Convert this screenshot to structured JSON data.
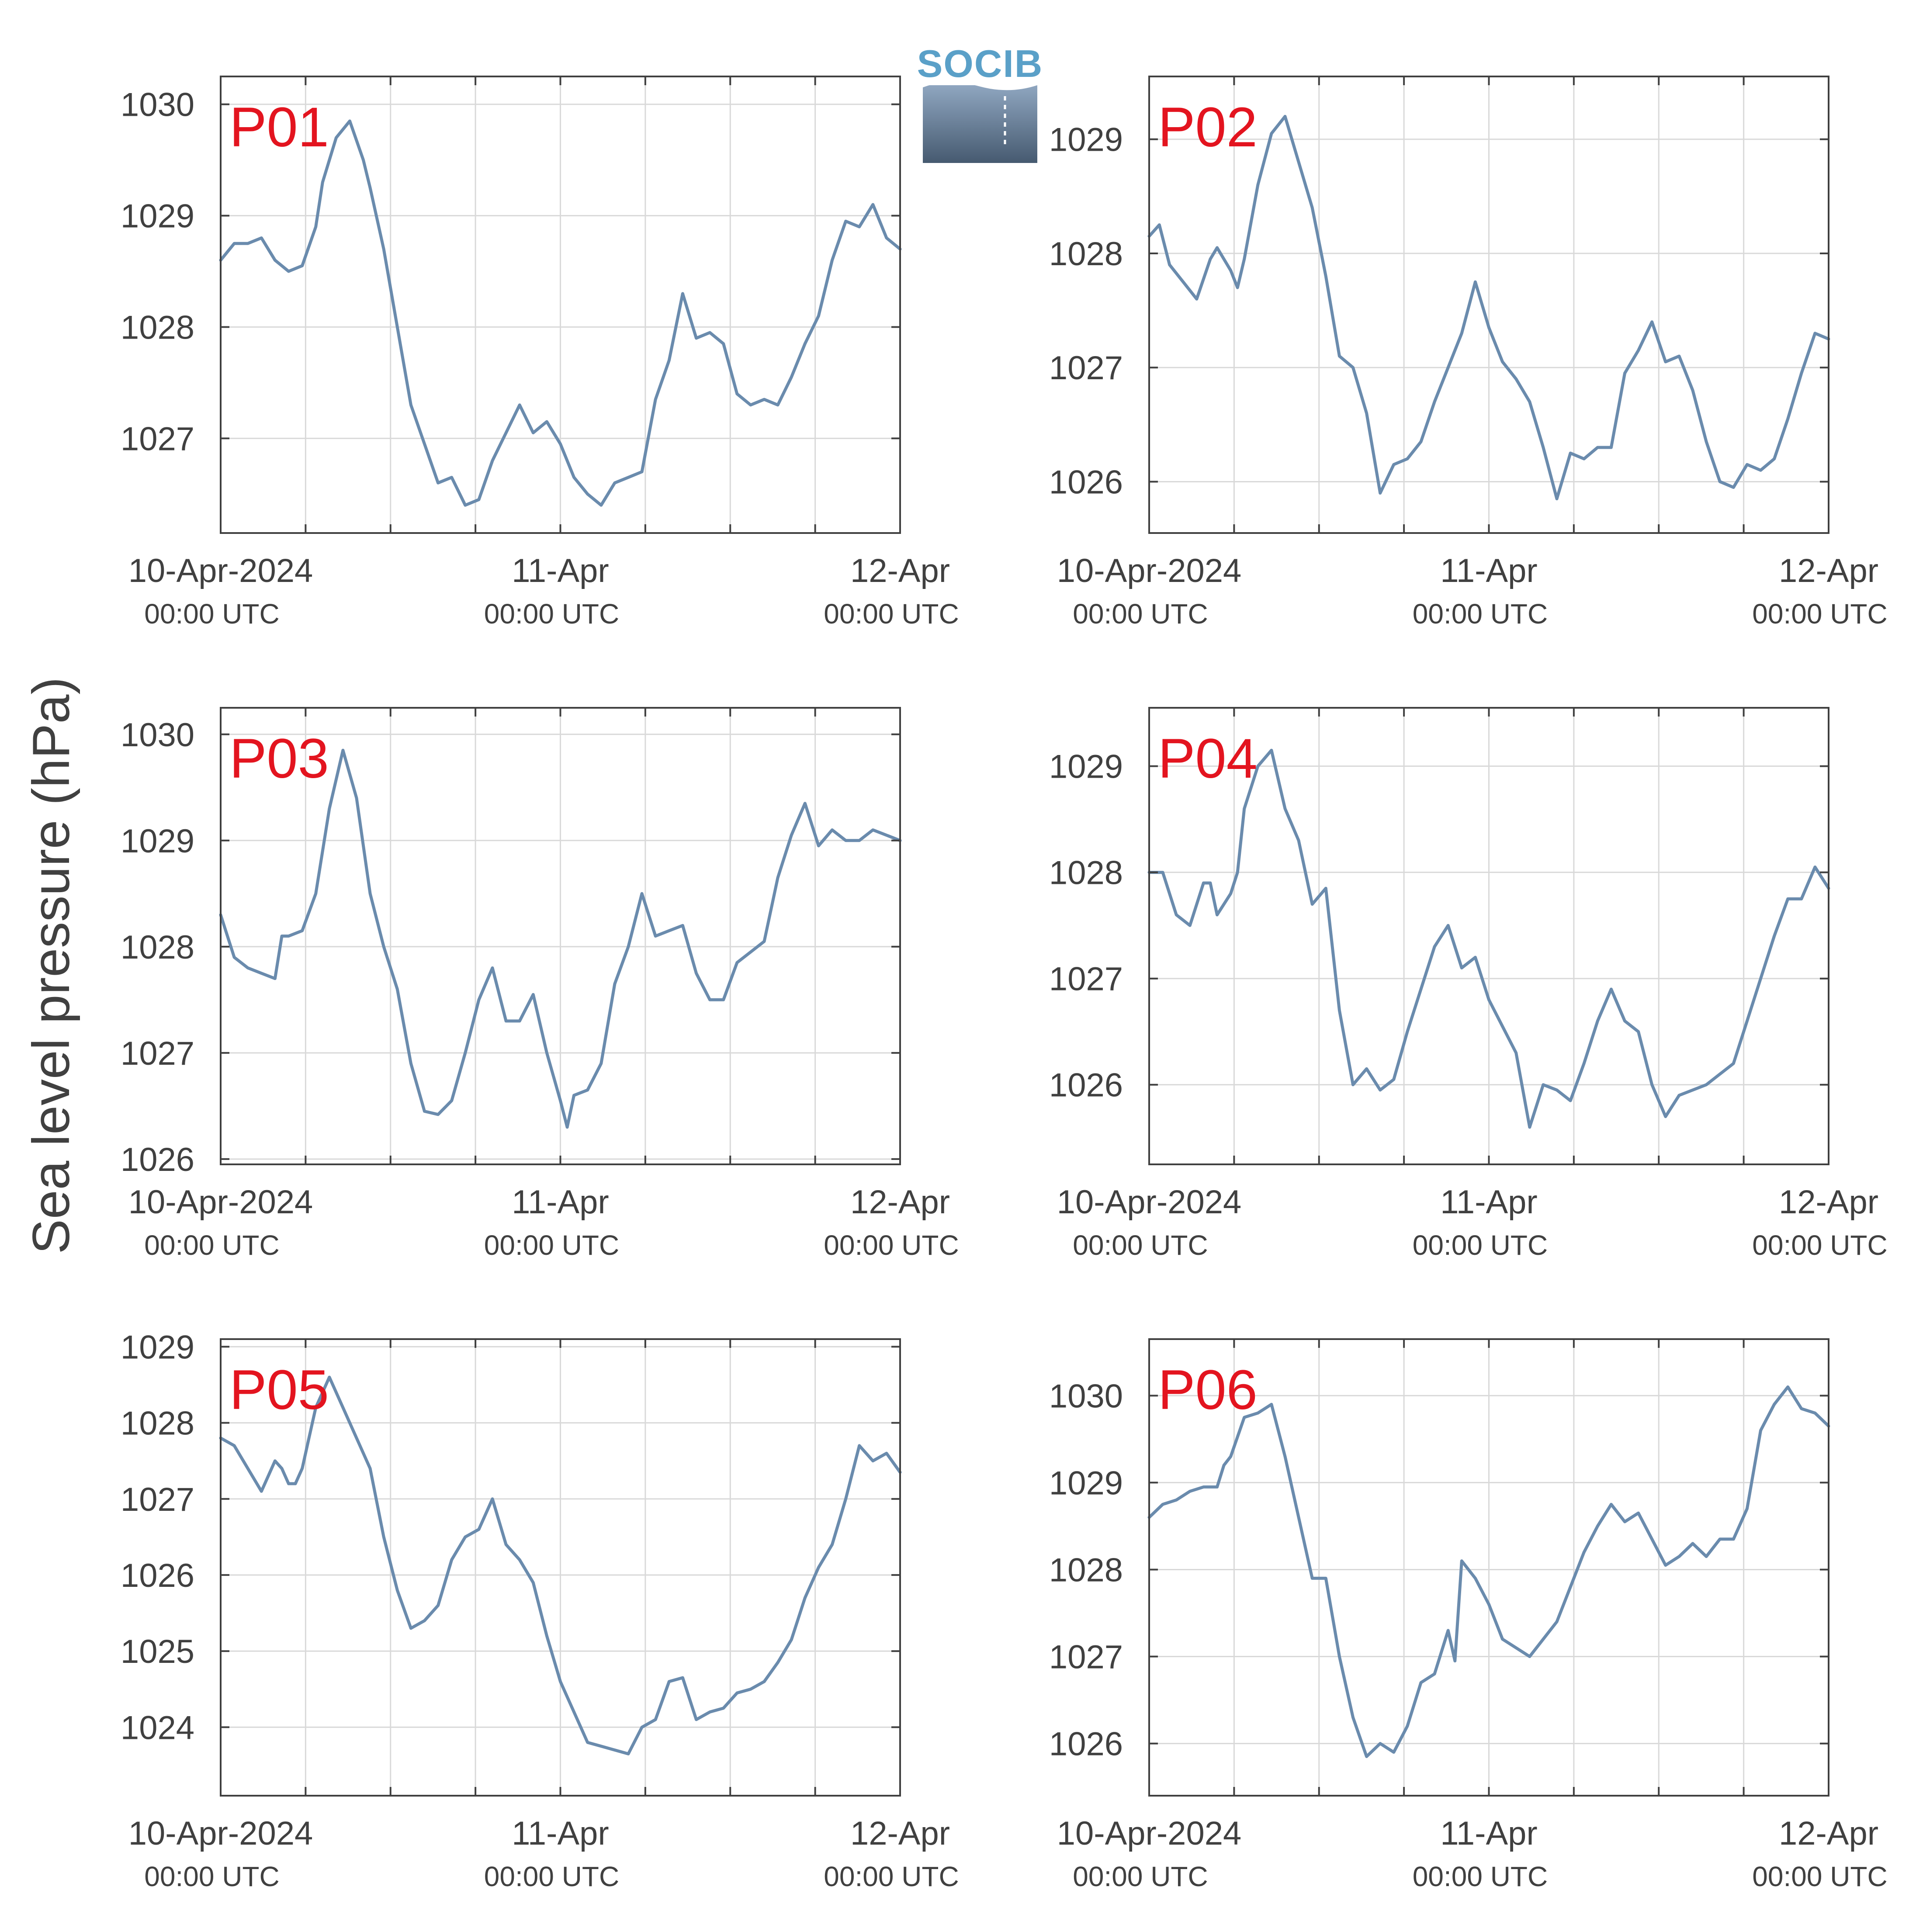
{
  "figure": {
    "ylabel": "Sea level pressure (hPa)",
    "logo_text": "SOCIB",
    "colors": {
      "line": "#6a8bad",
      "panel_label": "#e3141f",
      "grid": "#d9d9d9",
      "axis": "#404040",
      "tick_text": "#404040",
      "logo_top": "#8fa6c0",
      "logo_bottom": "#465a70",
      "logo_text": "#5aa0c8"
    }
  },
  "chart_data": [
    {
      "type": "line",
      "panel_label": "P01",
      "ylim": [
        1026.15,
        1030.25
      ],
      "yticks": [
        1027,
        1028,
        1029,
        1030
      ],
      "x_tick_labels": [
        {
          "day": 0,
          "date": "10-Apr-2024",
          "time": "00:00 UTC"
        },
        {
          "day": 1,
          "date": "11-Apr",
          "time": "00:00 UTC"
        },
        {
          "day": 2,
          "date": "12-Apr",
          "time": "00:00 UTC"
        }
      ],
      "x": [
        0,
        0.04,
        0.08,
        0.12,
        0.16,
        0.2,
        0.24,
        0.28,
        0.3,
        0.34,
        0.38,
        0.42,
        0.44,
        0.48,
        0.52,
        0.56,
        0.6,
        0.64,
        0.68,
        0.72,
        0.76,
        0.8,
        0.84,
        0.88,
        0.92,
        0.96,
        1.0,
        1.04,
        1.08,
        1.12,
        1.16,
        1.2,
        1.24,
        1.28,
        1.32,
        1.36,
        1.4,
        1.44,
        1.48,
        1.52,
        1.56,
        1.6,
        1.64,
        1.68,
        1.72,
        1.76,
        1.8,
        1.84,
        1.88,
        1.92,
        1.96,
        2.0
      ],
      "y": [
        1028.6,
        1028.75,
        1028.75,
        1028.8,
        1028.6,
        1028.5,
        1028.55,
        1028.9,
        1029.3,
        1029.7,
        1029.85,
        1029.5,
        1029.25,
        1028.7,
        1028.0,
        1027.3,
        1026.95,
        1026.6,
        1026.65,
        1026.4,
        1026.45,
        1026.8,
        1027.05,
        1027.3,
        1027.05,
        1027.15,
        1026.95,
        1026.65,
        1026.5,
        1026.4,
        1026.6,
        1026.65,
        1026.7,
        1027.35,
        1027.7,
        1028.3,
        1027.9,
        1027.95,
        1027.85,
        1027.4,
        1027.3,
        1027.35,
        1027.3,
        1027.55,
        1027.85,
        1028.1,
        1028.6,
        1028.95,
        1028.9,
        1029.1,
        1028.8,
        1028.7
      ]
    },
    {
      "type": "line",
      "panel_label": "P02",
      "ylim": [
        1025.55,
        1029.55
      ],
      "yticks": [
        1026,
        1027,
        1028,
        1029
      ],
      "x_tick_labels": [
        {
          "day": 0,
          "date": "10-Apr-2024",
          "time": "00:00 UTC"
        },
        {
          "day": 1,
          "date": "11-Apr",
          "time": "00:00 UTC"
        },
        {
          "day": 2,
          "date": "12-Apr",
          "time": "00:00 UTC"
        }
      ],
      "x": [
        0,
        0.03,
        0.06,
        0.1,
        0.14,
        0.18,
        0.2,
        0.24,
        0.26,
        0.28,
        0.32,
        0.36,
        0.4,
        0.44,
        0.48,
        0.52,
        0.56,
        0.6,
        0.64,
        0.68,
        0.72,
        0.76,
        0.8,
        0.84,
        0.88,
        0.92,
        0.96,
        1.0,
        1.04,
        1.08,
        1.12,
        1.16,
        1.2,
        1.24,
        1.28,
        1.32,
        1.36,
        1.4,
        1.44,
        1.48,
        1.52,
        1.56,
        1.6,
        1.64,
        1.68,
        1.72,
        1.76,
        1.8,
        1.84,
        1.88,
        1.92,
        1.96,
        2.0
      ],
      "y": [
        1028.15,
        1028.25,
        1027.9,
        1027.75,
        1027.6,
        1027.95,
        1028.05,
        1027.85,
        1027.7,
        1027.95,
        1028.6,
        1029.05,
        1029.2,
        1028.8,
        1028.4,
        1027.8,
        1027.1,
        1027.0,
        1026.6,
        1025.9,
        1026.15,
        1026.2,
        1026.35,
        1026.7,
        1027.0,
        1027.3,
        1027.75,
        1027.35,
        1027.05,
        1026.9,
        1026.7,
        1026.3,
        1025.85,
        1026.25,
        1026.2,
        1026.3,
        1026.3,
        1026.95,
        1027.15,
        1027.4,
        1027.05,
        1027.1,
        1026.8,
        1026.35,
        1026.0,
        1025.95,
        1026.15,
        1026.1,
        1026.2,
        1026.55,
        1026.95,
        1027.3,
        1027.25
      ]
    },
    {
      "type": "line",
      "panel_label": "P03",
      "ylim": [
        1025.95,
        1030.25
      ],
      "yticks": [
        1026,
        1027,
        1028,
        1029,
        1030
      ],
      "x_tick_labels": [
        {
          "day": 0,
          "date": "10-Apr-2024",
          "time": "00:00 UTC"
        },
        {
          "day": 1,
          "date": "11-Apr",
          "time": "00:00 UTC"
        },
        {
          "day": 2,
          "date": "12-Apr",
          "time": "00:00 UTC"
        }
      ],
      "x": [
        0,
        0.04,
        0.08,
        0.12,
        0.16,
        0.18,
        0.2,
        0.24,
        0.28,
        0.32,
        0.36,
        0.4,
        0.44,
        0.48,
        0.52,
        0.56,
        0.6,
        0.64,
        0.68,
        0.72,
        0.76,
        0.8,
        0.84,
        0.88,
        0.92,
        0.96,
        1.0,
        1.02,
        1.04,
        1.08,
        1.12,
        1.16,
        1.2,
        1.24,
        1.28,
        1.32,
        1.36,
        1.4,
        1.44,
        1.48,
        1.52,
        1.56,
        1.6,
        1.64,
        1.68,
        1.72,
        1.76,
        1.8,
        1.84,
        1.88,
        1.92,
        1.96,
        2.0
      ],
      "y": [
        1028.3,
        1027.9,
        1027.8,
        1027.75,
        1027.7,
        1028.1,
        1028.1,
        1028.15,
        1028.5,
        1029.3,
        1029.85,
        1029.4,
        1028.5,
        1028.0,
        1027.6,
        1026.9,
        1026.45,
        1026.42,
        1026.55,
        1027.0,
        1027.5,
        1027.8,
        1027.3,
        1027.3,
        1027.55,
        1027.0,
        1026.55,
        1026.3,
        1026.6,
        1026.65,
        1026.9,
        1027.65,
        1028.0,
        1028.5,
        1028.1,
        1028.15,
        1028.2,
        1027.75,
        1027.5,
        1027.5,
        1027.85,
        1027.95,
        1028.05,
        1028.65,
        1029.05,
        1029.35,
        1028.95,
        1029.1,
        1029.0,
        1029.0,
        1029.1,
        1029.05,
        1029.0
      ]
    },
    {
      "type": "line",
      "panel_label": "P04",
      "ylim": [
        1025.25,
        1029.55
      ],
      "yticks": [
        1026,
        1027,
        1028,
        1029
      ],
      "x_tick_labels": [
        {
          "day": 0,
          "date": "10-Apr-2024",
          "time": "00:00 UTC"
        },
        {
          "day": 1,
          "date": "11-Apr",
          "time": "00:00 UTC"
        },
        {
          "day": 2,
          "date": "12-Apr",
          "time": "00:00 UTC"
        }
      ],
      "x": [
        0,
        0.04,
        0.08,
        0.12,
        0.16,
        0.18,
        0.2,
        0.24,
        0.26,
        0.28,
        0.32,
        0.36,
        0.4,
        0.44,
        0.48,
        0.52,
        0.56,
        0.6,
        0.64,
        0.68,
        0.72,
        0.76,
        0.8,
        0.84,
        0.88,
        0.92,
        0.96,
        1.0,
        1.04,
        1.08,
        1.12,
        1.16,
        1.2,
        1.24,
        1.28,
        1.32,
        1.36,
        1.4,
        1.44,
        1.48,
        1.52,
        1.56,
        1.6,
        1.64,
        1.68,
        1.72,
        1.76,
        1.8,
        1.84,
        1.88,
        1.92,
        1.96,
        2.0
      ],
      "y": [
        1028.0,
        1028.0,
        1027.6,
        1027.5,
        1027.9,
        1027.9,
        1027.6,
        1027.8,
        1028.0,
        1028.6,
        1029.0,
        1029.15,
        1028.6,
        1028.3,
        1027.7,
        1027.85,
        1026.7,
        1026.0,
        1026.15,
        1025.95,
        1026.05,
        1026.5,
        1026.9,
        1027.3,
        1027.5,
        1027.1,
        1027.2,
        1026.8,
        1026.55,
        1026.3,
        1025.6,
        1026.0,
        1025.95,
        1025.85,
        1026.2,
        1026.6,
        1026.9,
        1026.6,
        1026.5,
        1026.0,
        1025.7,
        1025.9,
        1025.95,
        1026.0,
        1026.1,
        1026.2,
        1026.6,
        1027.0,
        1027.4,
        1027.75,
        1027.75,
        1028.05,
        1027.85
      ]
    },
    {
      "type": "line",
      "panel_label": "P05",
      "ylim": [
        1023.1,
        1029.1
      ],
      "yticks": [
        1024,
        1025,
        1026,
        1027,
        1028,
        1029
      ],
      "x_tick_labels": [
        {
          "day": 0,
          "date": "10-Apr-2024",
          "time": "00:00 UTC"
        },
        {
          "day": 1,
          "date": "11-Apr",
          "time": "00:00 UTC"
        },
        {
          "day": 2,
          "date": "12-Apr",
          "time": "00:00 UTC"
        }
      ],
      "x": [
        0,
        0.04,
        0.08,
        0.12,
        0.16,
        0.18,
        0.2,
        0.22,
        0.24,
        0.26,
        0.28,
        0.32,
        0.36,
        0.4,
        0.44,
        0.48,
        0.52,
        0.56,
        0.6,
        0.64,
        0.68,
        0.72,
        0.76,
        0.8,
        0.84,
        0.88,
        0.92,
        0.96,
        1.0,
        1.04,
        1.08,
        1.12,
        1.16,
        1.2,
        1.24,
        1.28,
        1.32,
        1.36,
        1.4,
        1.44,
        1.48,
        1.52,
        1.56,
        1.6,
        1.64,
        1.68,
        1.72,
        1.76,
        1.8,
        1.84,
        1.88,
        1.92,
        1.96,
        2.0
      ],
      "y": [
        1027.8,
        1027.7,
        1027.4,
        1027.1,
        1027.5,
        1027.4,
        1027.2,
        1027.2,
        1027.4,
        1027.8,
        1028.2,
        1028.6,
        1028.2,
        1027.8,
        1027.4,
        1026.5,
        1025.8,
        1025.3,
        1025.4,
        1025.6,
        1026.2,
        1026.5,
        1026.6,
        1027.0,
        1026.4,
        1026.2,
        1025.9,
        1025.2,
        1024.6,
        1024.2,
        1023.8,
        1023.75,
        1023.7,
        1023.65,
        1024.0,
        1024.1,
        1024.6,
        1024.65,
        1024.1,
        1024.2,
        1024.25,
        1024.45,
        1024.5,
        1024.6,
        1024.85,
        1025.15,
        1025.7,
        1026.1,
        1026.4,
        1027.0,
        1027.7,
        1027.5,
        1027.6,
        1027.35
      ]
    },
    {
      "type": "line",
      "panel_label": "P06",
      "ylim": [
        1025.4,
        1030.65
      ],
      "yticks": [
        1026,
        1027,
        1028,
        1029,
        1030
      ],
      "x_tick_labels": [
        {
          "day": 0,
          "date": "10-Apr-2024",
          "time": "00:00 UTC"
        },
        {
          "day": 1,
          "date": "11-Apr",
          "time": "00:00 UTC"
        },
        {
          "day": 2,
          "date": "12-Apr",
          "time": "00:00 UTC"
        }
      ],
      "x": [
        0,
        0.04,
        0.08,
        0.12,
        0.16,
        0.2,
        0.22,
        0.24,
        0.28,
        0.32,
        0.36,
        0.4,
        0.44,
        0.48,
        0.52,
        0.56,
        0.6,
        0.64,
        0.68,
        0.72,
        0.76,
        0.8,
        0.84,
        0.88,
        0.9,
        0.92,
        0.96,
        1.0,
        1.04,
        1.08,
        1.12,
        1.16,
        1.2,
        1.24,
        1.28,
        1.32,
        1.36,
        1.4,
        1.44,
        1.48,
        1.52,
        1.56,
        1.6,
        1.64,
        1.68,
        1.72,
        1.76,
        1.8,
        1.84,
        1.88,
        1.92,
        1.96,
        2.0
      ],
      "y": [
        1028.6,
        1028.75,
        1028.8,
        1028.9,
        1028.95,
        1028.95,
        1029.2,
        1029.3,
        1029.75,
        1029.8,
        1029.9,
        1029.3,
        1028.6,
        1027.9,
        1027.9,
        1027.0,
        1026.3,
        1025.85,
        1026.0,
        1025.9,
        1026.2,
        1026.7,
        1026.8,
        1027.3,
        1026.95,
        1028.1,
        1027.9,
        1027.6,
        1027.2,
        1027.1,
        1027.0,
        1027.2,
        1027.4,
        1027.8,
        1028.2,
        1028.5,
        1028.75,
        1028.55,
        1028.65,
        1028.35,
        1028.05,
        1028.15,
        1028.3,
        1028.15,
        1028.35,
        1028.35,
        1028.7,
        1029.6,
        1029.9,
        1030.1,
        1029.85,
        1029.8,
        1029.65
      ]
    }
  ]
}
